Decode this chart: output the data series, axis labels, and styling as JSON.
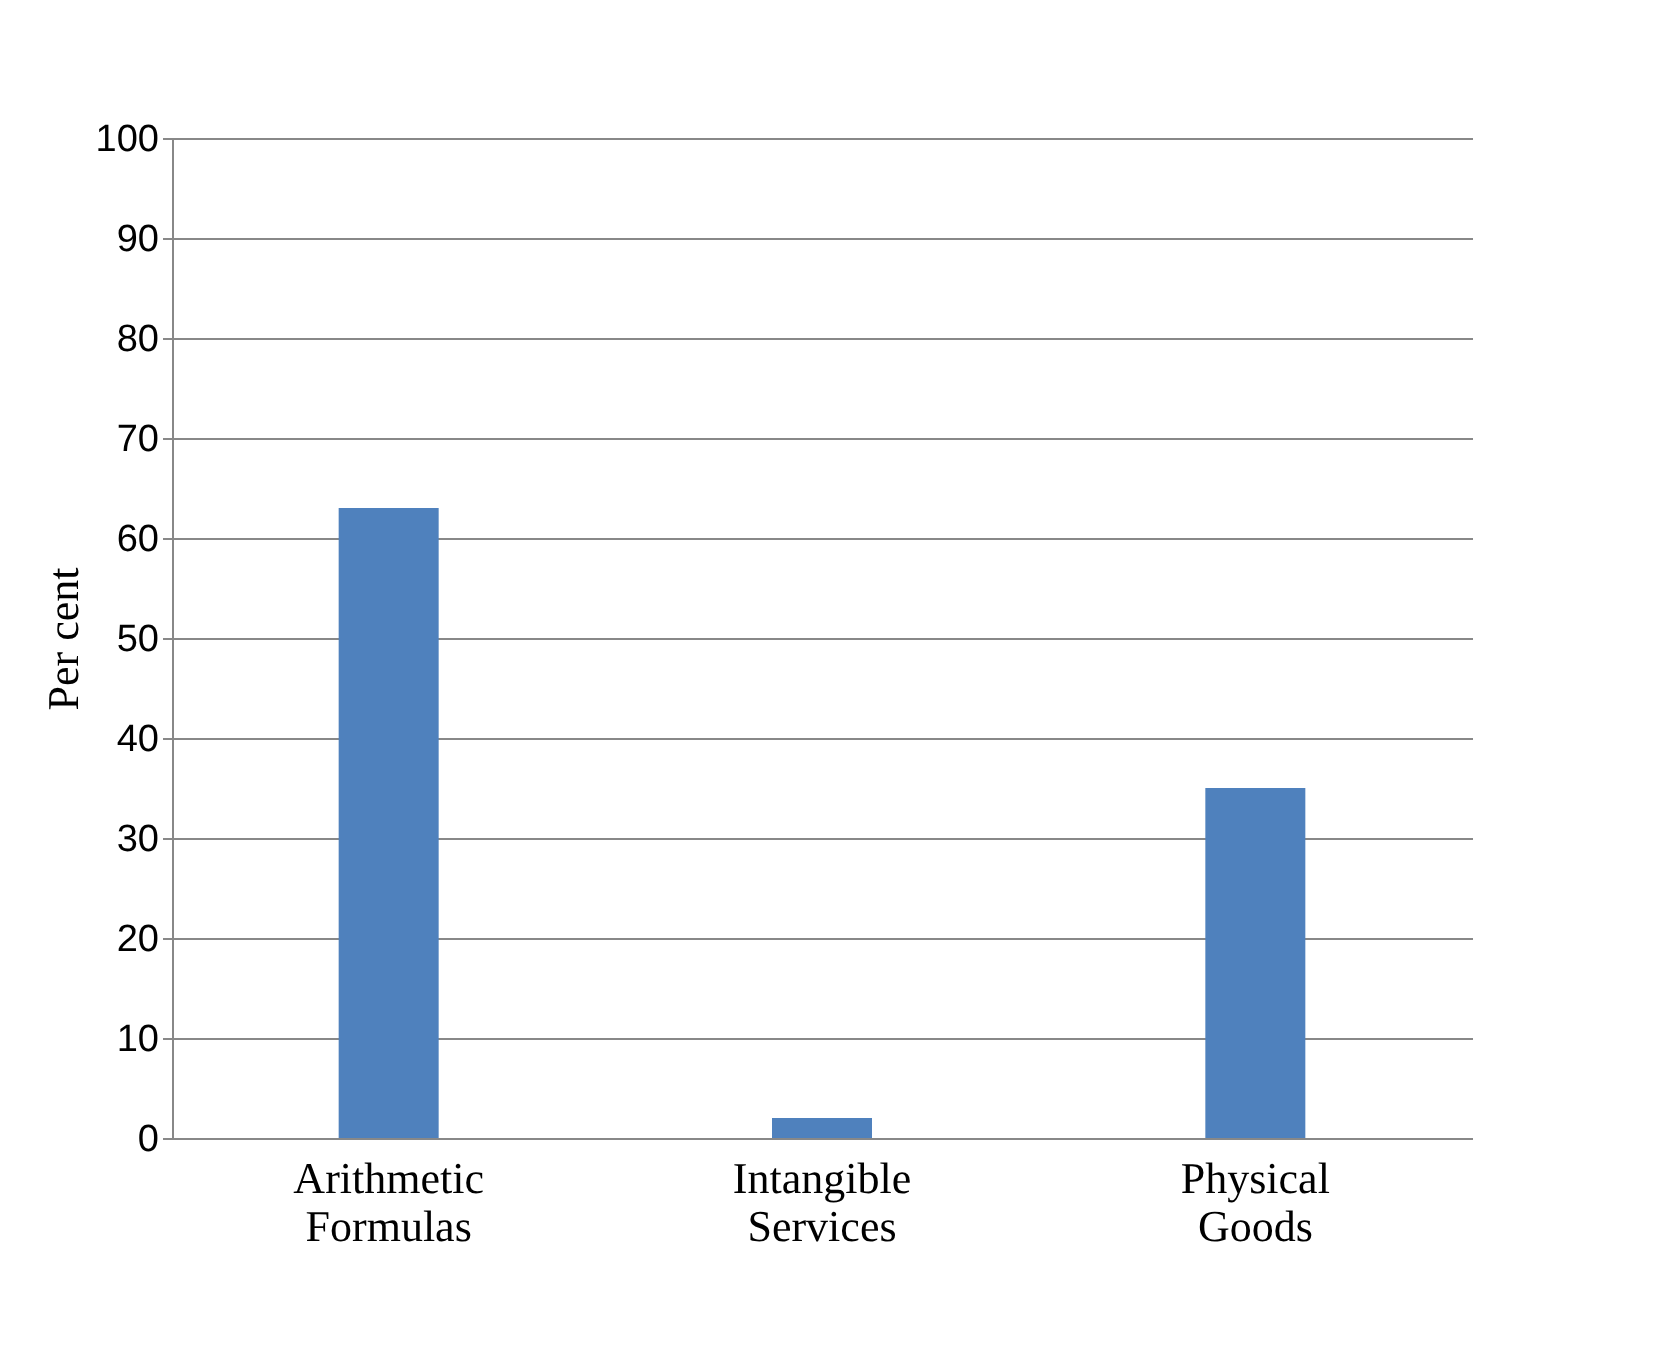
{
  "chart_data": {
    "type": "bar",
    "ylabel": "Per cent",
    "categories": [
      "Arithmetic Formulas",
      "Intangible Services",
      "Physical Goods"
    ],
    "values": [
      63,
      2,
      35
    ],
    "color": "#4f81bd",
    "ylim": [
      0,
      100
    ],
    "yticks": [
      0,
      10,
      20,
      30,
      40,
      50,
      60,
      70,
      80,
      90,
      100
    ],
    "grid": "y"
  }
}
